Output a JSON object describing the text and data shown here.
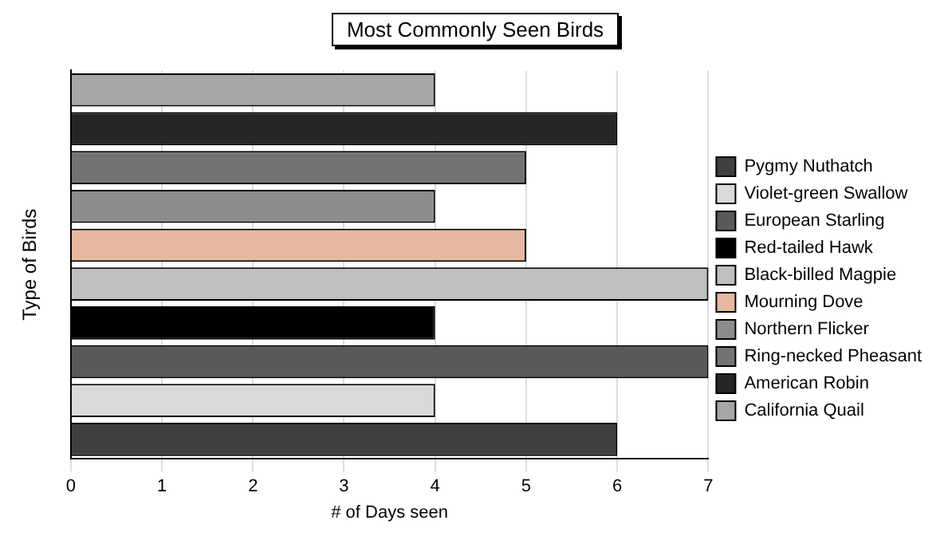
{
  "chart_data": {
    "type": "bar",
    "orientation": "horizontal",
    "title": "Most Commonly Seen Birds",
    "xlabel": "# of Days seen",
    "ylabel": "Type of Birds",
    "categories": [
      null,
      null,
      null,
      null,
      null,
      null,
      null,
      null,
      null,
      null
    ],
    "series": [
      {
        "name": "Pygmy Nuthatch",
        "color": "#404040",
        "values": [
          null,
          null,
          null,
          null,
          null,
          null,
          null,
          null,
          null,
          6
        ]
      },
      {
        "name": "Violet-green Swallow",
        "color": "#d9d9d9",
        "values": [
          null,
          null,
          null,
          null,
          null,
          null,
          null,
          null,
          4,
          null
        ]
      },
      {
        "name": "European Starling",
        "color": "#595959",
        "values": [
          null,
          null,
          null,
          null,
          null,
          null,
          null,
          7,
          null,
          null
        ]
      },
      {
        "name": "Red-tailed Hawk",
        "color": "#000000",
        "values": [
          null,
          null,
          null,
          null,
          null,
          null,
          4,
          null,
          null,
          null
        ]
      },
      {
        "name": "Black-billed Magpie",
        "color": "#bfbfbf",
        "values": [
          null,
          null,
          null,
          null,
          null,
          7,
          null,
          null,
          null,
          null
        ]
      },
      {
        "name": "Mourning Dove",
        "color": "#e6b8a0",
        "values": [
          null,
          null,
          null,
          null,
          5,
          null,
          null,
          null,
          null,
          null
        ]
      },
      {
        "name": "Northern Flicker",
        "color": "#8c8c8c",
        "values": [
          null,
          null,
          null,
          4,
          null,
          null,
          null,
          null,
          null,
          null
        ]
      },
      {
        "name": "Ring-necked Pheasant",
        "color": "#737373",
        "values": [
          null,
          null,
          5,
          null,
          null,
          null,
          null,
          null,
          null,
          null
        ]
      },
      {
        "name": "American Robin",
        "color": "#262626",
        "values": [
          null,
          6,
          null,
          null,
          null,
          null,
          null,
          null,
          null,
          null
        ]
      },
      {
        "name": "California Quail",
        "color": "#a6a6a6",
        "values": [
          4,
          null,
          null,
          null,
          null,
          null,
          null,
          null,
          null,
          null
        ]
      }
    ],
    "xlim": [
      0,
      7
    ],
    "xticks": [
      0,
      1,
      2,
      3,
      4,
      5,
      6,
      7
    ],
    "grid": "x",
    "legend": "right"
  }
}
